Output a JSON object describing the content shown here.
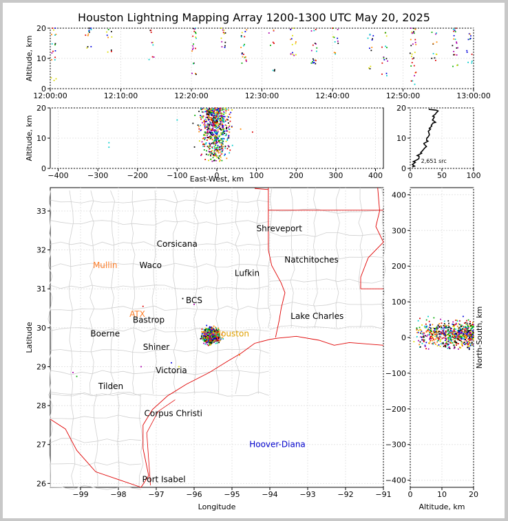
{
  "title": "Houston Lightning Mapping Array 1200-1300 UTC May 20, 2025",
  "colors": {
    "border": "#c8c8c8",
    "state_lines": "#e00000",
    "county_lines": "#cfcfcf",
    "source_palette": [
      "#0000dd",
      "#00aa00",
      "#dd0000",
      "#000000",
      "#00cccc",
      "#dddd00",
      "#ff8800",
      "#aa00aa"
    ]
  },
  "chart_data": [
    {
      "panel": "time-altitude",
      "type": "scatter",
      "ylabel": "Altitude, km",
      "xlim": [
        "12:00:00",
        "13:00:00"
      ],
      "ylim": [
        0,
        20
      ],
      "x_ticks": [
        "12:00:00",
        "12:10:00",
        "12:20:00",
        "12:30:00",
        "12:40:00",
        "12:50:00",
        "13:00:00"
      ],
      "y_ticks": [
        0,
        10,
        20
      ],
      "points_per_minute_window": [
        {
          "t": "12:00:00",
          "alt": [
            3,
            10,
            12,
            15,
            18,
            20
          ]
        },
        {
          "t": "12:05:00",
          "alt": [
            14,
            18,
            19,
            20
          ]
        },
        {
          "t": "12:08:00",
          "alt": [
            12,
            17,
            19
          ]
        },
        {
          "t": "12:14:00",
          "alt": [
            10,
            15,
            19
          ]
        },
        {
          "t": "12:20:00",
          "alt": [
            5,
            9,
            13,
            14,
            17,
            19,
            20
          ]
        },
        {
          "t": "12:24:00",
          "alt": [
            14,
            16,
            18,
            20
          ]
        },
        {
          "t": "12:27:00",
          "alt": [
            9,
            10,
            12,
            14,
            17,
            19
          ]
        },
        {
          "t": "12:31:00",
          "alt": [
            6,
            15,
            19
          ]
        },
        {
          "t": "12:34:00",
          "alt": [
            11,
            12,
            15,
            17,
            20
          ]
        },
        {
          "t": "12:37:00",
          "alt": [
            8,
            9,
            10,
            13,
            15,
            19
          ]
        },
        {
          "t": "12:40:00",
          "alt": [
            12,
            15,
            17,
            20
          ]
        },
        {
          "t": "12:45:00",
          "alt": [
            7,
            13,
            16,
            18
          ]
        },
        {
          "t": "12:47:00",
          "alt": [
            5,
            9,
            10,
            14,
            18
          ]
        },
        {
          "t": "12:51:00",
          "alt": [
            2,
            5,
            8,
            10,
            12,
            14,
            16,
            18,
            19,
            20
          ]
        },
        {
          "t": "12:54:00",
          "alt": [
            10,
            12,
            15,
            18
          ]
        },
        {
          "t": "12:57:00",
          "alt": [
            8,
            11,
            13,
            15,
            17,
            19,
            20
          ]
        },
        {
          "t": "12:59:00",
          "alt": [
            9,
            12,
            16,
            18
          ]
        }
      ]
    },
    {
      "panel": "east-west-altitude",
      "type": "scatter",
      "xlabel": "East-West, km",
      "ylabel": "Altitude, km",
      "xlim": [
        -420,
        420
      ],
      "ylim": [
        0,
        20
      ],
      "x_ticks": [
        -400,
        -300,
        -200,
        -100,
        0,
        100,
        200,
        300,
        400
      ],
      "y_ticks": [
        0,
        10,
        20
      ],
      "cluster": {
        "x_center": -5,
        "x_spread": 45,
        "alt_min": 2,
        "alt_max": 20
      },
      "outliers": [
        {
          "x": -272,
          "alt": 7
        },
        {
          "x": -272,
          "alt": 8.5
        },
        {
          "x": -100,
          "alt": 16
        },
        {
          "x": 60,
          "alt": 13
        },
        {
          "x": 90,
          "alt": 12
        }
      ]
    },
    {
      "panel": "altitude-histogram",
      "type": "line",
      "xlim": [
        0,
        100
      ],
      "ylim": [
        0,
        20
      ],
      "x_ticks": [
        0,
        50,
        100
      ],
      "y_ticks": [
        0,
        10,
        20
      ],
      "annotation": "2,651 src",
      "profile": [
        {
          "alt": 0.5,
          "count": 3
        },
        {
          "alt": 1,
          "count": 5
        },
        {
          "alt": 2,
          "count": 8
        },
        {
          "alt": 3,
          "count": 12
        },
        {
          "alt": 4,
          "count": 14
        },
        {
          "alt": 5,
          "count": 18
        },
        {
          "alt": 6,
          "count": 20
        },
        {
          "alt": 7,
          "count": 24
        },
        {
          "alt": 8,
          "count": 22
        },
        {
          "alt": 9,
          "count": 28
        },
        {
          "alt": 10,
          "count": 26
        },
        {
          "alt": 11,
          "count": 30
        },
        {
          "alt": 12,
          "count": 29
        },
        {
          "alt": 13,
          "count": 32
        },
        {
          "alt": 14,
          "count": 34
        },
        {
          "alt": 15,
          "count": 36
        },
        {
          "alt": 16,
          "count": 35
        },
        {
          "alt": 17,
          "count": 38
        },
        {
          "alt": 18,
          "count": 40
        },
        {
          "alt": 19,
          "count": 44
        },
        {
          "alt": 19.5,
          "count": 30
        }
      ]
    },
    {
      "panel": "map",
      "type": "scatter",
      "xlabel": "Longitude",
      "ylabel": "Latitude",
      "xlim": [
        -99.8,
        -91
      ],
      "ylim": [
        25.9,
        33.6
      ],
      "x_ticks": [
        -99,
        -98,
        -97,
        -96,
        -95,
        -94,
        -93,
        -92,
        -91
      ],
      "y_ticks": [
        26,
        27,
        28,
        29,
        30,
        31,
        32,
        33
      ],
      "cluster": {
        "lon": -95.55,
        "lat": 29.8,
        "lon_spread": 0.3,
        "lat_spread": 0.25
      },
      "places": [
        {
          "name": "Shreveport",
          "lon": -93.75,
          "lat": 32.55,
          "color": "#000000"
        },
        {
          "name": "Corsicana",
          "lon": -96.45,
          "lat": 32.15,
          "color": "#000000"
        },
        {
          "name": "Mullin",
          "lon": -98.35,
          "lat": 31.6,
          "color": "#ff7f2a"
        },
        {
          "name": "Waco",
          "lon": -97.15,
          "lat": 31.6,
          "color": "#000000"
        },
        {
          "name": "Natchitoches",
          "lon": -92.9,
          "lat": 31.75,
          "color": "#000000"
        },
        {
          "name": "Lufkin",
          "lon": -94.6,
          "lat": 31.4,
          "color": "#000000"
        },
        {
          "name": "BCS",
          "lon": -96.0,
          "lat": 30.7,
          "color": "#000000"
        },
        {
          "name": "ATX",
          "lon": -97.5,
          "lat": 30.35,
          "color": "#ff7f2a"
        },
        {
          "name": "Bastrop",
          "lon": -97.2,
          "lat": 30.2,
          "color": "#000000"
        },
        {
          "name": "Lake Charles",
          "lon": -92.75,
          "lat": 30.3,
          "color": "#000000"
        },
        {
          "name": "Boerne",
          "lon": -98.35,
          "lat": 29.85,
          "color": "#000000"
        },
        {
          "name": "Houston",
          "lon": -95.0,
          "lat": 29.85,
          "color": "#e0a000"
        },
        {
          "name": "Shiner",
          "lon": -97.0,
          "lat": 29.5,
          "color": "#000000"
        },
        {
          "name": "Victoria",
          "lon": -96.6,
          "lat": 28.9,
          "color": "#000000"
        },
        {
          "name": "Tilden",
          "lon": -98.2,
          "lat": 28.5,
          "color": "#000000"
        },
        {
          "name": "Corpus Christi",
          "lon": -96.55,
          "lat": 27.8,
          "color": "#000000"
        },
        {
          "name": "Hoover-Diana",
          "lon": -93.8,
          "lat": 27.0,
          "color": "#0000cc"
        },
        {
          "name": "Port Isabel",
          "lon": -96.8,
          "lat": 26.1,
          "color": "#000000"
        }
      ]
    },
    {
      "panel": "altitude-north-south",
      "type": "scatter",
      "xlabel": "Altitude, km",
      "ylabel": "North-South, km",
      "xlim": [
        0,
        20
      ],
      "ylim": [
        -420,
        420
      ],
      "x_ticks": [
        0,
        10,
        20
      ],
      "y_ticks": [
        -400,
        -300,
        -200,
        -100,
        0,
        100,
        200,
        300,
        400
      ],
      "cluster": {
        "ns_center": 10,
        "ns_spread": 50,
        "alt_min": 1,
        "alt_max": 20
      }
    }
  ]
}
